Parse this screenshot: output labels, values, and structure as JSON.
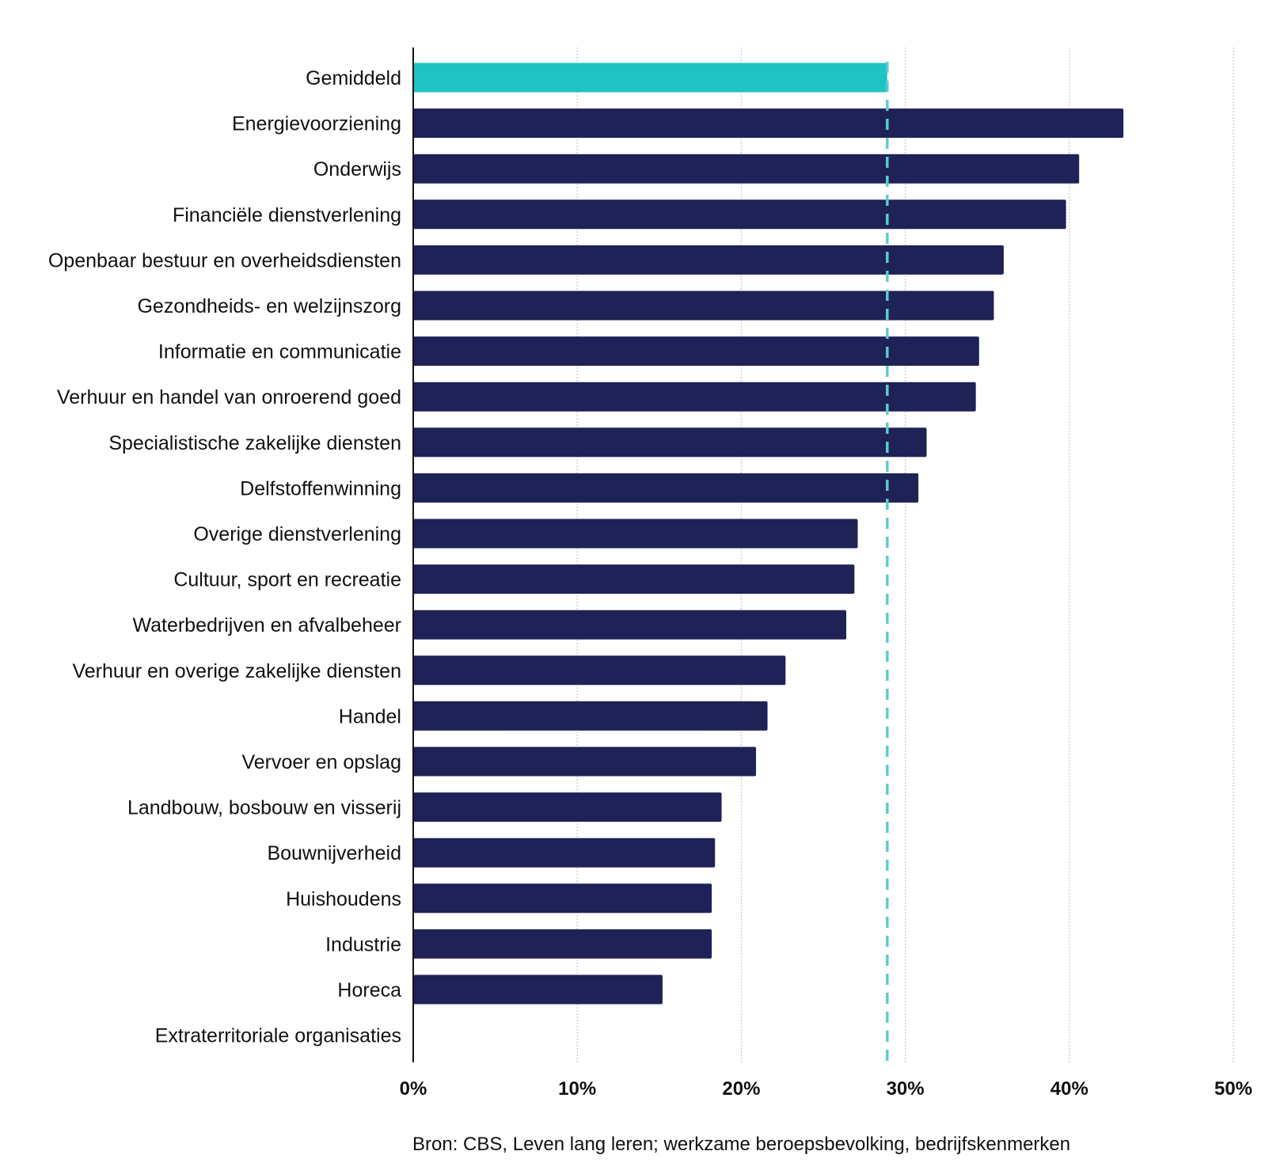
{
  "chart_data": {
    "type": "bar",
    "orientation": "horizontal",
    "categories": [
      "Gemiddeld",
      "Energievoorziening",
      "Onderwijs",
      "Financiële dienstverlening",
      "Openbaar bestuur en overheidsdiensten",
      "Gezondheids- en welzijnszorg",
      "Informatie en communicatie",
      "Verhuur en handel van onroerend goed",
      "Specialistische zakelijke diensten",
      "Delfstoffenwinning",
      "Overige dienstverlening",
      "Cultuur, sport en recreatie",
      "Waterbedrijven en afvalbeheer",
      "Verhuur en overige zakelijke diensten",
      "Handel",
      "Vervoer en opslag",
      "Landbouw, bosbouw en visserij",
      "Bouwnijverheid",
      "Huishoudens",
      "Industrie",
      "Horeca",
      "Extraterritoriale organisaties"
    ],
    "values": [
      28.9,
      43.3,
      40.6,
      39.8,
      36.0,
      35.4,
      34.5,
      34.3,
      31.3,
      30.8,
      27.1,
      26.9,
      26.4,
      22.7,
      21.6,
      20.9,
      18.8,
      18.4,
      18.2,
      18.2,
      15.2,
      0
    ],
    "highlight_category": "Gemiddeld",
    "reference_line": {
      "value": 28.9,
      "style": "dashed"
    },
    "xlim": [
      0,
      50
    ],
    "xticks": [
      0,
      10,
      20,
      30,
      40,
      50
    ],
    "xtick_labels": [
      "0%",
      "10%",
      "20%",
      "30%",
      "40%",
      "50%"
    ],
    "grid": "vertical dotted",
    "title": "",
    "xlabel": "",
    "ylabel": ""
  },
  "colors": {
    "bar": "#1f2257",
    "highlight": "#1fc3c3",
    "reference_line": "#5ecbcc",
    "grid": "#c8c8c8",
    "axis": "#111111"
  },
  "source": "Bron: CBS, Leven lang leren; werkzame beroepsbevolking, bedrijfskenmerken"
}
